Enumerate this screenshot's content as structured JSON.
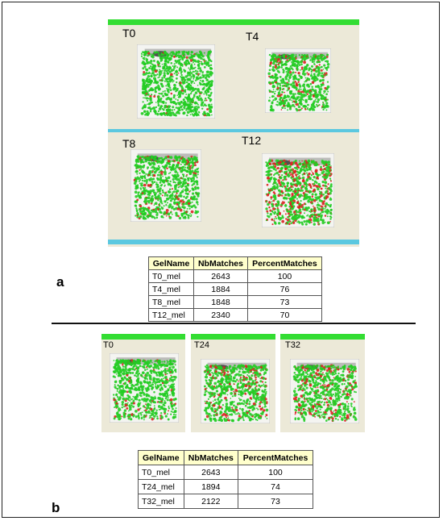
{
  "panel_a": {
    "letter": "a",
    "gels": [
      {
        "label": "T0"
      },
      {
        "label": "T4"
      },
      {
        "label": "T8"
      },
      {
        "label": "T12"
      }
    ],
    "table": {
      "headers": [
        "GelName",
        "NbMatches",
        "PercentMatches"
      ],
      "rows": [
        [
          "T0_mel",
          "2643",
          "100"
        ],
        [
          "T4_mel",
          "1884",
          "76"
        ],
        [
          "T8_mel",
          "1848",
          "73"
        ],
        [
          "T12_mel",
          "2340",
          "70"
        ]
      ]
    }
  },
  "panel_b": {
    "letter": "b",
    "gels": [
      {
        "label": "T0"
      },
      {
        "label": "T24"
      },
      {
        "label": "T32"
      }
    ],
    "table": {
      "headers": [
        "GelName",
        "NbMatches",
        "PercentMatches"
      ],
      "rows": [
        [
          "T0_mel",
          "2643",
          "100"
        ],
        [
          "T24_mel",
          "1894",
          "74"
        ],
        [
          "T32_mel",
          "2122",
          "73"
        ]
      ]
    }
  },
  "colors": {
    "panel_bg": "#ece9d8",
    "green_bar": "#33dd33",
    "teal_bar": "#5bc8e0",
    "spot_green": "#22cc22",
    "spot_red": "#dd2222",
    "table_header": "#ffffcc"
  }
}
